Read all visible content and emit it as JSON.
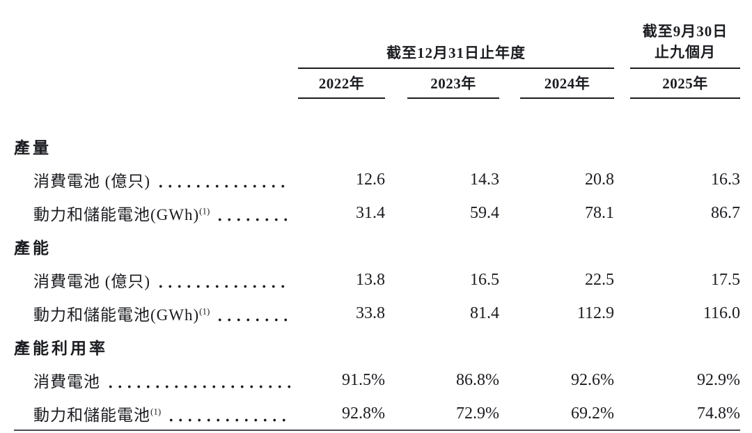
{
  "table": {
    "group_header_left": "截至12月31日止年度",
    "group_header_right_line1": "截至9月30日",
    "group_header_right_line2": "止九個月",
    "columns": [
      "2022年",
      "2023年",
      "2024年",
      "2025年"
    ],
    "sections": [
      {
        "title": "產量",
        "rows": [
          {
            "label": "消費電池 (億只)",
            "sup": "",
            "values": [
              "12.6",
              "14.3",
              "20.8",
              "16.3"
            ]
          },
          {
            "label": "動力和儲能電池(GWh)",
            "sup": "(1)",
            "values": [
              "31.4",
              "59.4",
              "78.1",
              "86.7"
            ]
          }
        ]
      },
      {
        "title": "產能",
        "rows": [
          {
            "label": "消費電池 (億只)",
            "sup": "",
            "values": [
              "13.8",
              "16.5",
              "22.5",
              "17.5"
            ]
          },
          {
            "label": "動力和儲能電池(GWh)",
            "sup": "(1)",
            "values": [
              "33.8",
              "81.4",
              "112.9",
              "116.0"
            ]
          }
        ]
      },
      {
        "title": "產能利用率",
        "rows": [
          {
            "label": "消費電池",
            "sup": "",
            "values": [
              "91.5%",
              "86.8%",
              "92.6%",
              "92.9%"
            ]
          },
          {
            "label": "動力和儲能電池",
            "sup": "(1)",
            "values": [
              "92.8%",
              "72.9%",
              "69.2%",
              "74.8%"
            ]
          }
        ]
      }
    ]
  },
  "colors": {
    "ink": "#1b1c20",
    "rule": "#1b1c20"
  }
}
